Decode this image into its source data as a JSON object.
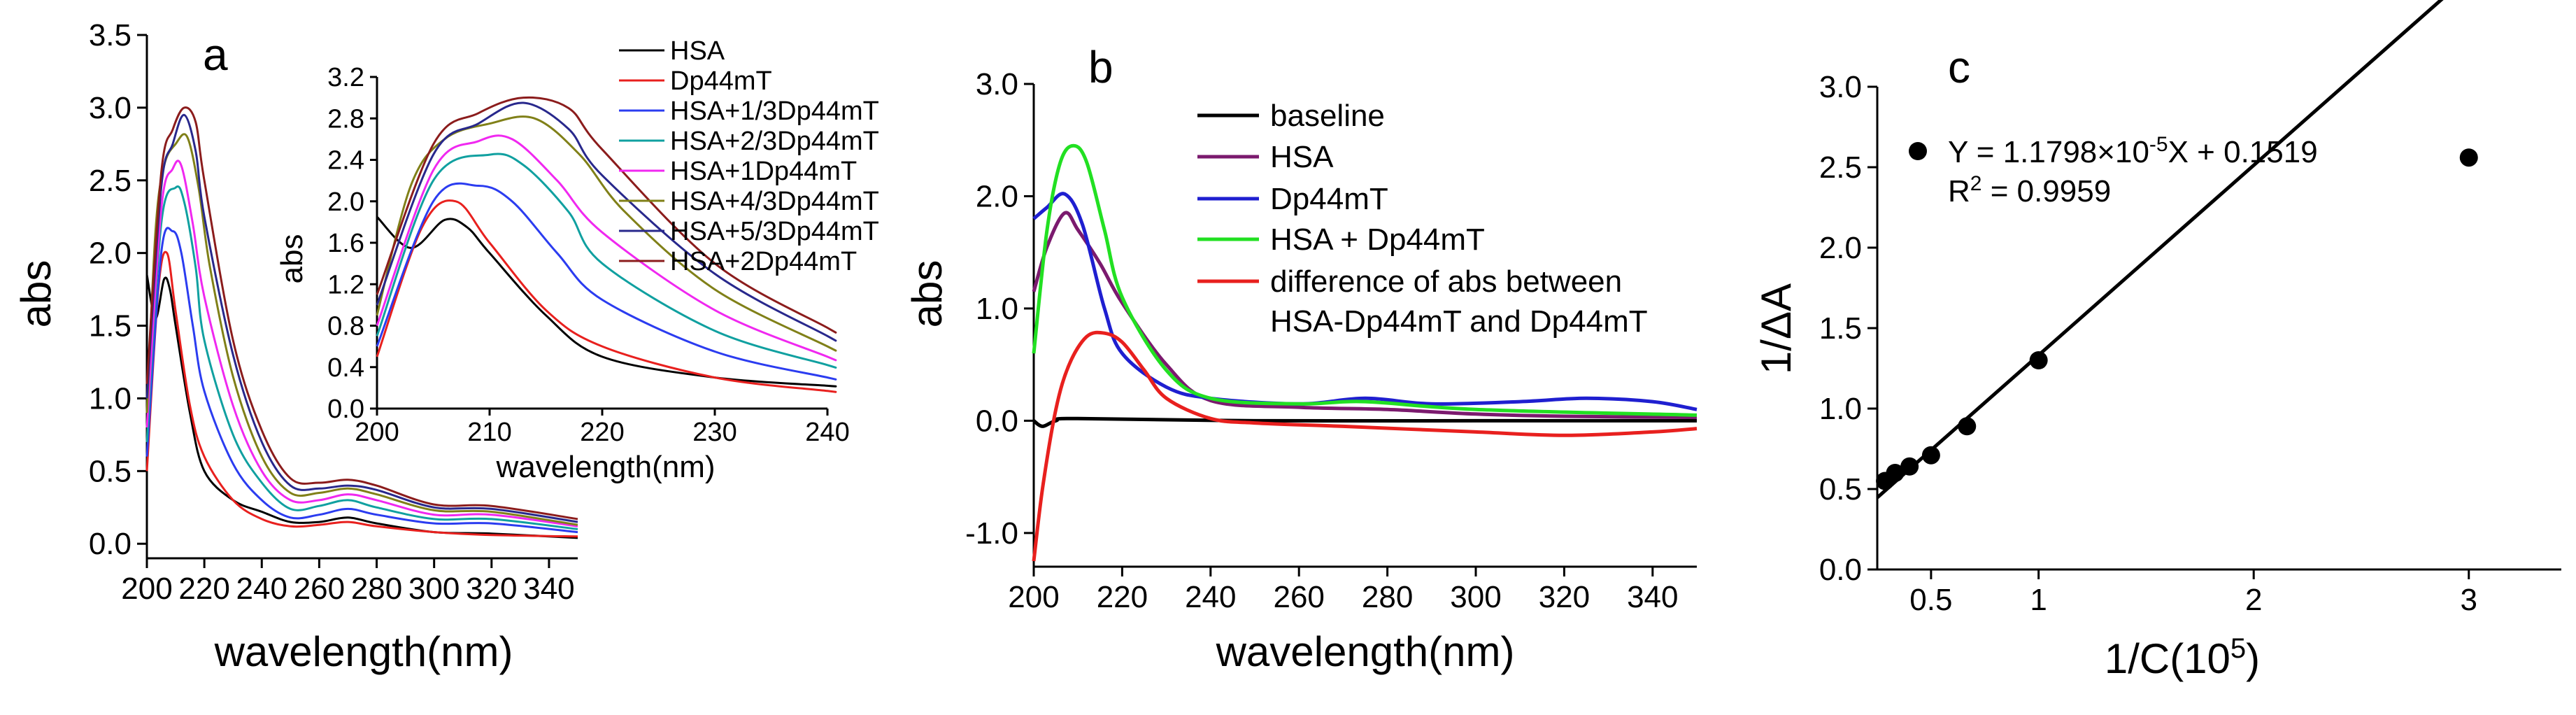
{
  "chart_data": [
    {
      "panel": "a",
      "type": "line",
      "xlabel": "wavelength(nm)",
      "ylabel": "abs",
      "xlim": [
        200,
        350
      ],
      "ylim": [
        -0.1,
        3.5
      ],
      "xticks": [
        200,
        220,
        240,
        260,
        280,
        300,
        320,
        340
      ],
      "yticks": [
        0.0,
        0.5,
        1.0,
        1.5,
        2.0,
        2.5,
        3.0,
        3.5
      ],
      "ytick_labels": [
        "0.0",
        "0.5",
        "1.0",
        "1.5",
        "2.0",
        "2.5",
        "3.0",
        "3.5"
      ],
      "legend": {
        "placement": "top-right"
      },
      "series": [
        {
          "name": "HSA",
          "color": "#000000",
          "x": [
            200,
            203,
            206,
            208,
            210,
            215,
            220,
            230,
            240,
            250,
            260,
            270,
            280,
            300,
            320,
            350
          ],
          "y": [
            1.85,
            1.55,
            1.82,
            1.75,
            1.5,
            0.9,
            0.5,
            0.3,
            0.22,
            0.15,
            0.15,
            0.18,
            0.14,
            0.08,
            0.07,
            0.04
          ]
        },
        {
          "name": "Dp44mT",
          "color": "#e8201e",
          "x": [
            200,
            204,
            207,
            210,
            215,
            220,
            230,
            240,
            250,
            260,
            270,
            280,
            300,
            320,
            350
          ],
          "y": [
            0.5,
            1.75,
            2.0,
            1.6,
            0.95,
            0.6,
            0.3,
            0.17,
            0.12,
            0.13,
            0.15,
            0.12,
            0.08,
            0.06,
            0.05
          ]
        },
        {
          "name": "HSA+1/3Dp44mT",
          "color": "#2b3cf0",
          "x": [
            200,
            205,
            209,
            212,
            216,
            220,
            230,
            240,
            250,
            260,
            270,
            280,
            300,
            320,
            350
          ],
          "y": [
            0.6,
            2.0,
            2.15,
            2.0,
            1.5,
            1.05,
            0.55,
            0.3,
            0.18,
            0.2,
            0.24,
            0.2,
            0.14,
            0.14,
            0.08
          ]
        },
        {
          "name": "HSA+2/3Dp44mT",
          "color": "#10a0a0",
          "x": [
            200,
            205,
            210,
            213,
            217,
            220,
            230,
            240,
            250,
            260,
            270,
            280,
            300,
            320,
            350
          ],
          "y": [
            0.7,
            2.2,
            2.45,
            2.35,
            1.9,
            1.4,
            0.75,
            0.42,
            0.24,
            0.26,
            0.3,
            0.25,
            0.17,
            0.17,
            0.1
          ]
        },
        {
          "name": "HSA+1Dp44mT",
          "color": "#f028f0",
          "x": [
            200,
            205,
            209,
            212,
            216,
            220,
            230,
            240,
            250,
            260,
            270,
            280,
            300,
            320,
            350
          ],
          "y": [
            0.8,
            2.3,
            2.58,
            2.6,
            2.2,
            1.7,
            0.95,
            0.5,
            0.3,
            0.3,
            0.34,
            0.3,
            0.2,
            0.2,
            0.12
          ]
        },
        {
          "name": "HSA+4/3Dp44mT",
          "color": "#808018",
          "x": [
            200,
            203,
            206,
            210,
            214,
            218,
            222,
            230,
            240,
            250,
            260,
            270,
            280,
            300,
            320,
            350
          ],
          "y": [
            0.9,
            2.15,
            2.6,
            2.75,
            2.8,
            2.45,
            1.9,
            1.15,
            0.6,
            0.35,
            0.35,
            0.38,
            0.34,
            0.23,
            0.22,
            0.13
          ]
        },
        {
          "name": "HSA+5/3Dp44mT",
          "color": "#28288c",
          "x": [
            200,
            205,
            209,
            213,
            217,
            220,
            230,
            240,
            250,
            260,
            270,
            280,
            300,
            320,
            350
          ],
          "y": [
            1.0,
            2.45,
            2.75,
            2.95,
            2.7,
            2.25,
            1.3,
            0.7,
            0.4,
            0.38,
            0.4,
            0.37,
            0.25,
            0.24,
            0.15
          ]
        },
        {
          "name": "HSA+2Dp44mT",
          "color": "#8b1c1c",
          "x": [
            200,
            205,
            209,
            213,
            217,
            220,
            230,
            240,
            250,
            260,
            270,
            280,
            300,
            320,
            350
          ],
          "y": [
            1.1,
            2.55,
            2.85,
            3.0,
            2.9,
            2.5,
            1.4,
            0.78,
            0.45,
            0.42,
            0.44,
            0.4,
            0.27,
            0.26,
            0.17
          ]
        }
      ],
      "inset": {
        "xlabel": "wavelength(nm)",
        "ylabel": "abs",
        "xlim": [
          200,
          240
        ],
        "ylim": [
          0.0,
          3.2
        ],
        "xticks": [
          200,
          210,
          220,
          230,
          240
        ],
        "yticks": [
          0.0,
          0.4,
          0.8,
          1.2,
          1.6,
          2.0,
          2.4,
          2.8,
          3.2
        ]
      }
    },
    {
      "panel": "b",
      "type": "line",
      "xlabel": "wavelength(nm)",
      "ylabel": "abs",
      "xlim": [
        200,
        350
      ],
      "ylim": [
        -1.3,
        3.0
      ],
      "xticks": [
        200,
        220,
        240,
        260,
        280,
        300,
        320,
        340
      ],
      "yticks": [
        -1.0,
        0.0,
        1.0,
        2.0,
        3.0
      ],
      "ytick_labels": [
        "-1.0",
        "0.0",
        "1.0",
        "2.0",
        "3.0"
      ],
      "legend": {
        "placement": "top-right"
      },
      "series": [
        {
          "name": "baseline",
          "color": "#000000",
          "x": [
            200,
            202,
            205,
            210,
            250,
            300,
            350
          ],
          "y": [
            0.0,
            -0.05,
            0.0,
            0.02,
            0.0,
            0.0,
            0.0
          ]
        },
        {
          "name": "HSA",
          "color": "#7b1a6e",
          "x": [
            200,
            203,
            207,
            210,
            215,
            220,
            230,
            240,
            260,
            280,
            300,
            320,
            350
          ],
          "y": [
            1.15,
            1.55,
            1.85,
            1.7,
            1.4,
            1.05,
            0.5,
            0.18,
            0.12,
            0.1,
            0.06,
            0.04,
            0.03
          ]
        },
        {
          "name": "Dp44mT",
          "color": "#1f1fd0",
          "x": [
            200,
            203,
            207,
            211,
            216,
            220,
            230,
            240,
            260,
            275,
            290,
            310,
            325,
            340,
            350
          ],
          "y": [
            1.8,
            1.9,
            2.02,
            1.75,
            1.0,
            0.6,
            0.3,
            0.2,
            0.15,
            0.2,
            0.15,
            0.17,
            0.2,
            0.17,
            0.1
          ]
        },
        {
          "name": "HSA + Dp44mT",
          "color": "#22e022",
          "x": [
            200,
            203,
            206,
            209,
            212,
            216,
            220,
            230,
            240,
            260,
            275,
            300,
            350
          ],
          "y": [
            0.6,
            1.7,
            2.3,
            2.45,
            2.3,
            1.7,
            1.1,
            0.45,
            0.2,
            0.15,
            0.17,
            0.1,
            0.05
          ]
        },
        {
          "name": "difference of abs between HSA-Dp44mT and Dp44mT",
          "color": "#e8201e",
          "x": [
            200,
            202,
            205,
            208,
            212,
            216,
            220,
            225,
            230,
            240,
            250,
            270,
            300,
            320,
            340,
            350
          ],
          "y": [
            -1.25,
            -0.6,
            0.1,
            0.5,
            0.75,
            0.78,
            0.7,
            0.45,
            0.2,
            0.02,
            -0.02,
            -0.05,
            -0.1,
            -0.13,
            -0.1,
            -0.07
          ]
        }
      ]
    },
    {
      "panel": "c",
      "type": "scatter",
      "xlabel": "1/C(10",
      "xlabel_sup": "5",
      "xlabel_end": ")",
      "ylabel": "1/ΔA",
      "xlim": [
        0.25,
        3.43
      ],
      "ylim": [
        0.0,
        3.0
      ],
      "xticks": [
        0.5,
        1,
        2,
        3
      ],
      "xtick_labels": [
        "0.5",
        "1",
        "2",
        "3"
      ],
      "yticks": [
        0.0,
        0.5,
        1.0,
        1.5,
        2.0,
        2.5,
        3.0
      ],
      "ytick_labels": [
        "0.0",
        "0.5",
        "1.0",
        "1.5",
        "2.0",
        "2.5",
        "3.0"
      ],
      "points": {
        "x": [
          0.286,
          0.333,
          0.4,
          0.5,
          0.667,
          1.0,
          3.0
        ],
        "y": [
          0.55,
          0.6,
          0.64,
          0.71,
          0.89,
          1.3,
          2.56
        ]
      },
      "fit": {
        "slope": 1.18,
        "intercept": 0.152
      },
      "annotation": {
        "eq_a": "Y = 1.1798×10",
        "eq_sup": "-5",
        "eq_b": "X + 0.1519",
        "r2_a": "R",
        "r2_sup": "2",
        "r2_b": " = 0.9959"
      }
    }
  ]
}
